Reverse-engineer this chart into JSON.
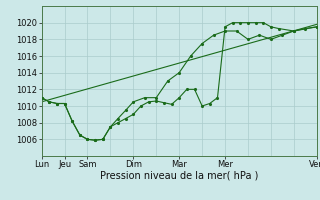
{
  "background_color": "#cce8e8",
  "grid_color": "#aacccc",
  "line_color": "#1a6b1a",
  "xlabel": "Pression niveau de la mer( hPa )",
  "ylim": [
    1004,
    1022
  ],
  "yticks": [
    1006,
    1008,
    1010,
    1012,
    1014,
    1016,
    1018,
    1020
  ],
  "xlim": [
    0,
    12
  ],
  "x_major_pos": [
    0,
    1,
    2,
    4,
    6,
    8,
    12
  ],
  "x_major_labels": [
    "Lun",
    "Jeu",
    "Sam",
    "Dim",
    "Mar",
    "Mer",
    "Ven"
  ],
  "x_minor_pos": [
    0,
    1,
    2,
    3,
    4,
    5,
    6,
    7,
    8,
    9,
    10,
    11,
    12
  ],
  "label_fontsize": 7,
  "tick_fontsize": 6,
  "line1_x": [
    0,
    0.33,
    0.67,
    1,
    1.33,
    1.67,
    2,
    2.33,
    2.67,
    3,
    3.33,
    3.67,
    4,
    4.33,
    4.67,
    5,
    5.33,
    5.67,
    6,
    6.33,
    6.67,
    7,
    7.33,
    7.67,
    8,
    8.33,
    8.67,
    9,
    9.33,
    9.67,
    10,
    10.33,
    11,
    12
  ],
  "line1_y": [
    1011,
    1010.5,
    1010.3,
    1010.3,
    1008.2,
    1006.5,
    1006,
    1005.9,
    1006,
    1007.5,
    1008,
    1008.5,
    1009,
    1010,
    1010.5,
    1010.6,
    1010.4,
    1010.2,
    1011,
    1012,
    1012,
    1010,
    1010.3,
    1011,
    1019.5,
    1020,
    1020,
    1020,
    1020,
    1020,
    1019.5,
    1019.3,
    1019,
    1019.5
  ],
  "line2_x": [
    0,
    0.33,
    0.67,
    1,
    1.33,
    1.67,
    2,
    2.33,
    2.67,
    3,
    3.33,
    3.67,
    4,
    4.5,
    5,
    5.5,
    6,
    6.5,
    7,
    7.5,
    8,
    8.5,
    9,
    9.5,
    10,
    10.5,
    11,
    11.5,
    12
  ],
  "line2_y": [
    1011,
    1010.5,
    1010.3,
    1010.3,
    1008.2,
    1006.5,
    1006,
    1005.9,
    1006,
    1007.5,
    1008.5,
    1009.5,
    1010.5,
    1011,
    1011,
    1013,
    1014,
    1016,
    1017.5,
    1018.5,
    1019,
    1019,
    1018,
    1018.5,
    1018,
    1018.5,
    1019,
    1019.3,
    1019.5
  ],
  "line3_x": [
    0,
    12
  ],
  "line3_y": [
    1010.5,
    1019.8
  ]
}
